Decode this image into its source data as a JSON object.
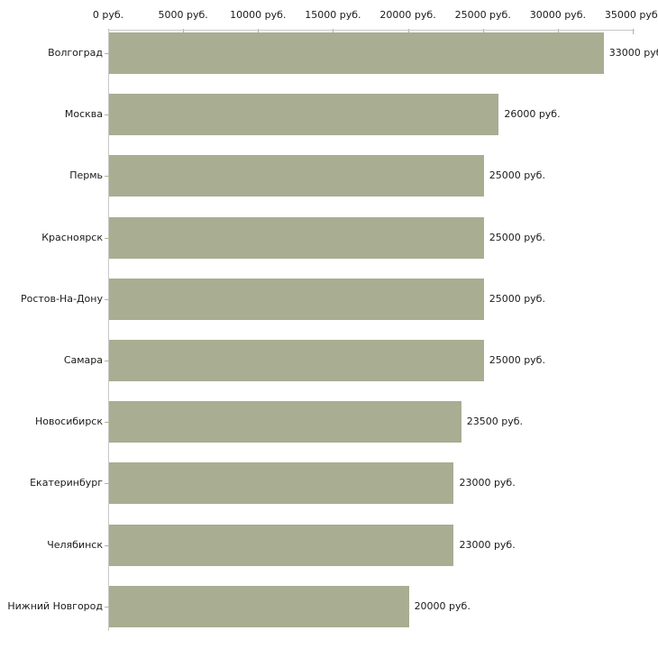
{
  "chart_data": {
    "type": "bar",
    "orientation": "horizontal",
    "title": "",
    "xlabel": "",
    "ylabel": "",
    "categories": [
      "Волгоград",
      "Москва",
      "Пермь",
      "Красноярск",
      "Ростов-На-Дону",
      "Самара",
      "Новосибирск",
      "Екатеринбург",
      "Челябинск",
      "Нижний Новгород"
    ],
    "values": [
      33000,
      26000,
      25000,
      25000,
      25000,
      25000,
      23500,
      23000,
      23000,
      20000
    ],
    "value_labels": [
      "33000 руб",
      "26000 руб.",
      "25000 руб.",
      "25000 руб.",
      "25000 руб.",
      "25000 руб.",
      "23500 руб.",
      "23000 руб.",
      "23000 руб.",
      "20000 руб."
    ],
    "x_axis": {
      "position": "top",
      "min": 0,
      "max": 35000,
      "tick_values": [
        0,
        5000,
        10000,
        15000,
        20000,
        25000,
        30000,
        35000
      ],
      "tick_labels": [
        "0 руб.",
        "5000 руб.",
        "10000 руб.",
        "15000 руб.",
        "20000 руб.",
        "25000 руб.",
        "30000 руб.",
        "35000 руб."
      ]
    },
    "grid": false,
    "legend": false,
    "colors": {
      "bar": "#a9ad92",
      "axis_line": "#c8c8c8",
      "tick_mark": "#b4b58a",
      "text": "#1a1a1a",
      "background": "#ffffff"
    }
  }
}
